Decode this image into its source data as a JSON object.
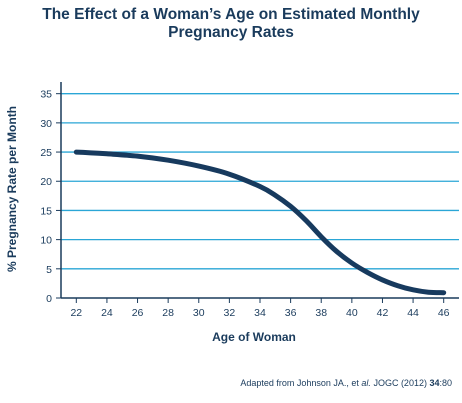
{
  "chart_data": {
    "type": "line",
    "title_line1": "The Effect of a Woman’s Age on Estimated Monthly",
    "title_line2": "Pregnancy Rates",
    "xlabel": "Age of Woman",
    "ylabel": "% Pregnancy Rate per Month",
    "xlim": [
      21,
      47
    ],
    "ylim": [
      0,
      37
    ],
    "x_ticks": [
      22,
      24,
      26,
      28,
      30,
      32,
      34,
      36,
      38,
      40,
      42,
      44,
      46
    ],
    "y_ticks": [
      0,
      5,
      10,
      15,
      20,
      25,
      30,
      35
    ],
    "grid": true,
    "colors": {
      "line": "#173a5e",
      "grid": "#2aa6d6",
      "text": "#1a3b5c"
    },
    "x": [
      22,
      24,
      26,
      28,
      30,
      32,
      34,
      35,
      36,
      37,
      38,
      39,
      40,
      41,
      42,
      43,
      44,
      45,
      46
    ],
    "y": [
      25.0,
      24.7,
      24.3,
      23.6,
      22.6,
      21.2,
      19.1,
      17.6,
      15.7,
      13.3,
      10.5,
      8.0,
      6.0,
      4.4,
      3.1,
      2.1,
      1.4,
      1.0,
      0.9
    ]
  },
  "source": {
    "prefix": "Adapted from Johnson JA., et ",
    "italic": "al.",
    "middle": " JOGC (2012) ",
    "bold": "34",
    "suffix": ":80"
  }
}
